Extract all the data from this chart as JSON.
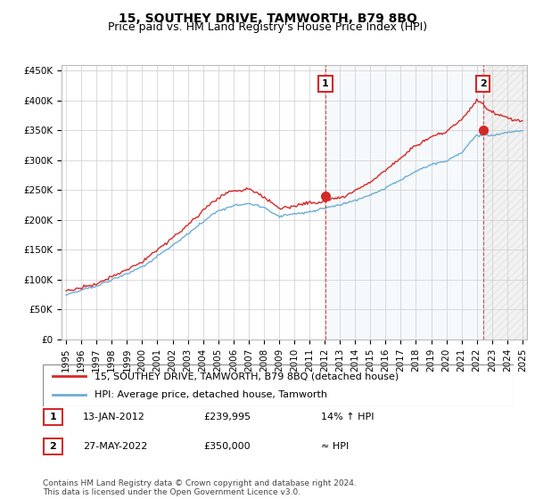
{
  "title": "15, SOUTHEY DRIVE, TAMWORTH, B79 8BQ",
  "subtitle": "Price paid vs. HM Land Registry's House Price Index (HPI)",
  "ylabel_ticks": [
    "£0",
    "£50K",
    "£100K",
    "£150K",
    "£200K",
    "£250K",
    "£300K",
    "£350K",
    "£400K",
    "£450K"
  ],
  "ytick_values": [
    0,
    50000,
    100000,
    150000,
    200000,
    250000,
    300000,
    350000,
    400000,
    450000
  ],
  "ylim": [
    0,
    460000
  ],
  "xlim_start": 1994.7,
  "xlim_end": 2025.3,
  "hpi_color": "#6baed6",
  "price_color": "#d62728",
  "vline_color": "#d62728",
  "shade_between_color": "#deebf7",
  "shade_after_color": "#f0f0f0",
  "grid_color": "#cccccc",
  "background_color": "#ffffff",
  "sale1_date_x": 2012.04,
  "sale1_price": 239995,
  "sale2_date_x": 2022.41,
  "sale2_price": 350000,
  "legend_label_red": "15, SOUTHEY DRIVE, TAMWORTH, B79 8BQ (detached house)",
  "legend_label_blue": "HPI: Average price, detached house, Tamworth",
  "annotation1_label": "1",
  "annotation1_date": "13-JAN-2012",
  "annotation1_price": "£239,995",
  "annotation1_hpi": "14% ↑ HPI",
  "annotation2_label": "2",
  "annotation2_date": "27-MAY-2022",
  "annotation2_price": "£350,000",
  "annotation2_hpi": "≈ HPI",
  "footer": "Contains HM Land Registry data © Crown copyright and database right 2024.\nThis data is licensed under the Open Government Licence v3.0.",
  "title_fontsize": 10,
  "subtitle_fontsize": 9,
  "tick_fontsize": 7.5,
  "legend_fontsize": 8,
  "annotation_fontsize": 8,
  "hpi_key_years": [
    1995,
    1996,
    1997,
    1998,
    1999,
    2000,
    2001,
    2002,
    2003,
    2004,
    2005,
    2006,
    2007,
    2008,
    2009,
    2010,
    2011,
    2012,
    2013,
    2014,
    2015,
    2016,
    2017,
    2018,
    2019,
    2020,
    2021,
    2022,
    2023,
    2024,
    2025
  ],
  "hpi_key_values": [
    74000,
    80000,
    87000,
    96000,
    108000,
    120000,
    140000,
    158000,
    175000,
    195000,
    210000,
    218000,
    222000,
    215000,
    200000,
    205000,
    210000,
    215000,
    220000,
    228000,
    238000,
    250000,
    265000,
    280000,
    290000,
    295000,
    310000,
    340000,
    340000,
    345000,
    350000
  ],
  "prop_key_years": [
    1995,
    1996,
    1997,
    1998,
    1999,
    2000,
    2001,
    2002,
    2003,
    2004,
    2005,
    2006,
    2007,
    2008,
    2009,
    2010,
    2011,
    2012,
    2013,
    2014,
    2015,
    2016,
    2017,
    2018,
    2019,
    2020,
    2021,
    2022,
    2023,
    2024,
    2025
  ],
  "prop_key_values": [
    82000,
    88000,
    96000,
    107000,
    120000,
    134000,
    155000,
    175000,
    196000,
    220000,
    240000,
    252000,
    258000,
    245000,
    228000,
    232000,
    238000,
    240000,
    245000,
    255000,
    268000,
    285000,
    305000,
    325000,
    340000,
    348000,
    370000,
    400000,
    380000,
    370000,
    365000
  ]
}
